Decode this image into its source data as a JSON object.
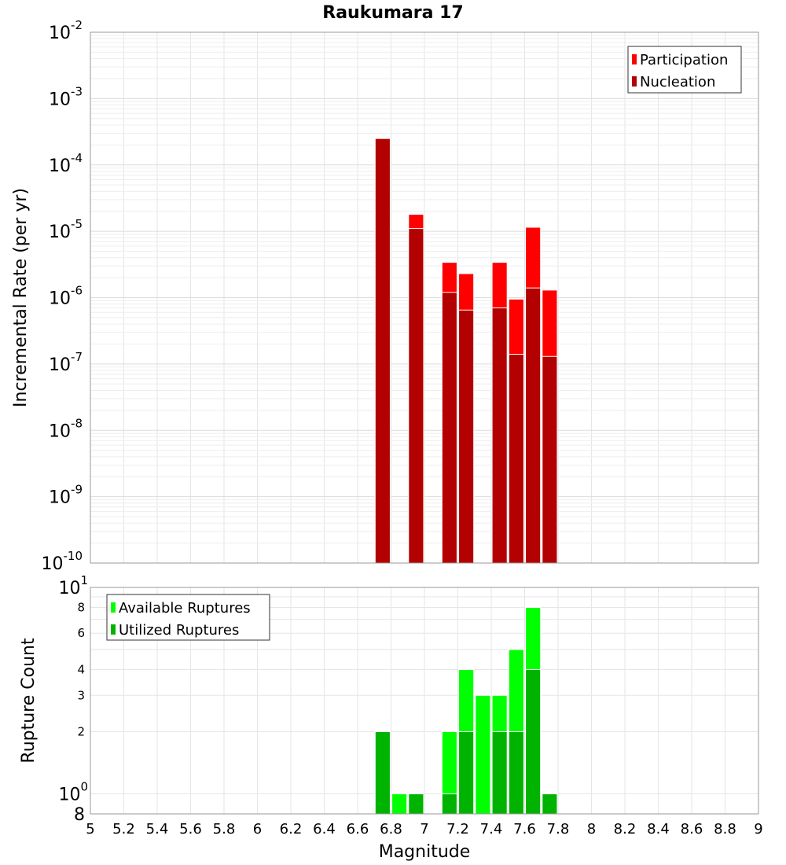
{
  "chart_data": [
    {
      "type": "bar",
      "title": "Raukumara 17",
      "xlabel": "Magnitude",
      "ylabel": "Incremental Rate (per yr)",
      "yscale": "log",
      "xlim": [
        5,
        9
      ],
      "ylim": [
        1e-10,
        0.01
      ],
      "bar_width": 0.09,
      "x_ticks": [
        "5",
        "5.2",
        "5.4",
        "5.6",
        "5.8",
        "6",
        "6.2",
        "6.4",
        "6.6",
        "6.8",
        "7",
        "7.2",
        "7.4",
        "7.6",
        "7.8",
        "8",
        "8.2",
        "8.4",
        "8.6",
        "8.8",
        "9"
      ],
      "y_ticks": [
        {
          "base": "10",
          "exp": "-2"
        },
        {
          "base": "10",
          "exp": "-3"
        },
        {
          "base": "10",
          "exp": "-4"
        },
        {
          "base": "10",
          "exp": "-5"
        },
        {
          "base": "10",
          "exp": "-6"
        },
        {
          "base": "10",
          "exp": "-7"
        },
        {
          "base": "10",
          "exp": "-8"
        },
        {
          "base": "10",
          "exp": "-9"
        },
        {
          "base": "10",
          "exp": "-10"
        }
      ],
      "legend": {
        "position": "top-right"
      },
      "series": [
        {
          "name": "Participation",
          "color": "#ff0000",
          "x": [
            6.75,
            6.95,
            7.15,
            7.25,
            7.45,
            7.55,
            7.65,
            7.75
          ],
          "values": [
            0.00025,
            1.8e-05,
            3.4e-06,
            2.3e-06,
            3.4e-06,
            9.5e-07,
            1.15e-05,
            1.3e-06
          ]
        },
        {
          "name": "Nucleation",
          "color": "#b30000",
          "x": [
            6.75,
            6.95,
            7.15,
            7.25,
            7.45,
            7.55,
            7.65,
            7.75
          ],
          "values": [
            0.00025,
            1.1e-05,
            1.2e-06,
            6.5e-07,
            7e-07,
            1.4e-07,
            1.4e-06,
            1.3e-07
          ]
        }
      ]
    },
    {
      "type": "bar",
      "xlabel": "Magnitude",
      "ylabel": "Rupture Count",
      "yscale": "log",
      "xlim": [
        5,
        9
      ],
      "ylim": [
        0.8,
        10
      ],
      "bar_width": 0.09,
      "y_ticks": [
        {
          "value": 10,
          "base": "10",
          "exp": "1"
        },
        {
          "value": 8,
          "label": "8"
        },
        {
          "value": 6,
          "label": "6"
        },
        {
          "value": 4,
          "label": "4"
        },
        {
          "value": 3,
          "label": "3"
        },
        {
          "value": 2,
          "label": "2"
        },
        {
          "value": 1,
          "base": "10",
          "exp": "0"
        },
        {
          "value": 0.8,
          "label": "8"
        }
      ],
      "legend": {
        "position": "top-left"
      },
      "series": [
        {
          "name": "Available Ruptures",
          "color": "#00ff00",
          "x": [
            6.75,
            6.85,
            6.95,
            7.15,
            7.25,
            7.35,
            7.45,
            7.55,
            7.65,
            7.75
          ],
          "values": [
            2,
            1,
            1,
            2,
            4,
            3,
            3,
            5,
            8,
            1
          ]
        },
        {
          "name": "Utilized Ruptures",
          "color": "#00b300",
          "x": [
            6.75,
            6.85,
            6.95,
            7.15,
            7.25,
            7.35,
            7.45,
            7.55,
            7.65,
            7.75
          ],
          "values": [
            2,
            0,
            1,
            1,
            2,
            0,
            2,
            2,
            4,
            1
          ]
        }
      ]
    }
  ]
}
